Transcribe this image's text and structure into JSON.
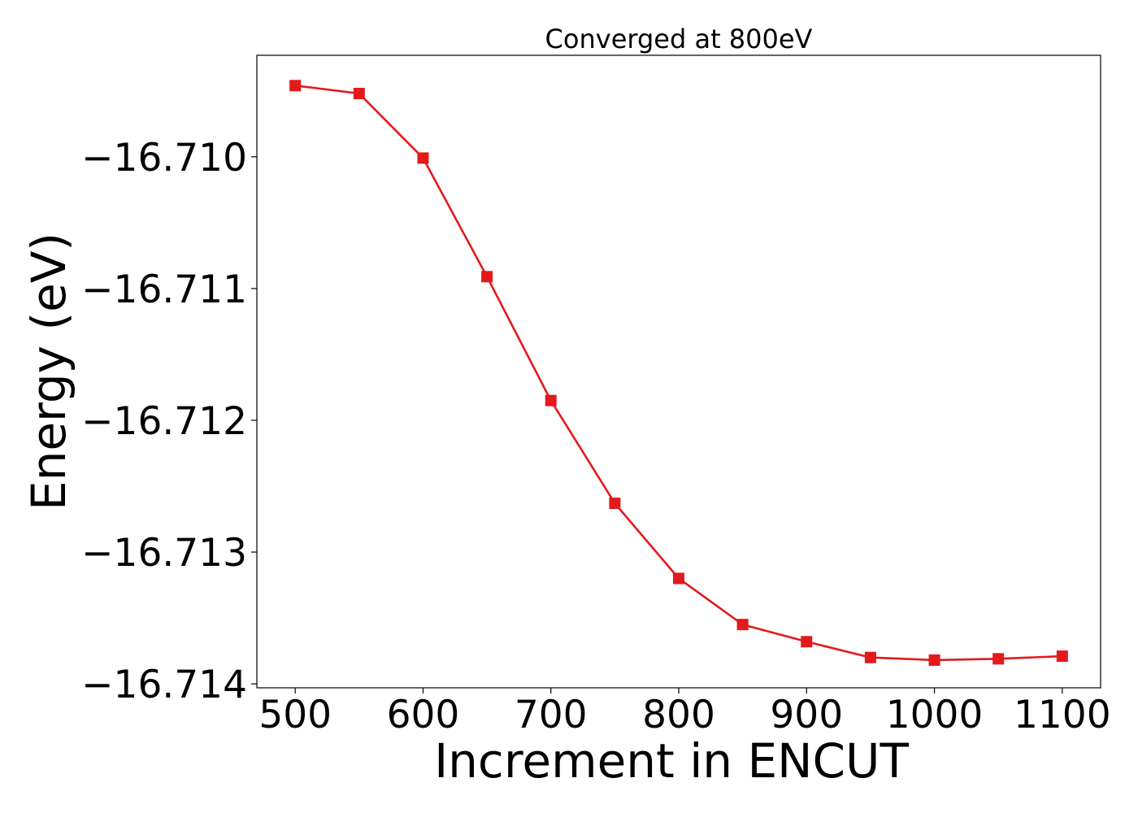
{
  "chart_data": {
    "type": "line",
    "title": "Converged at 800eV",
    "xlabel": "Increment in ENCUT",
    "ylabel": "Energy (eV)",
    "x": [
      500,
      550,
      600,
      650,
      700,
      750,
      800,
      850,
      900,
      950,
      1000,
      1050,
      1100
    ],
    "series": [
      {
        "values": [
          -16.70946,
          -16.70952,
          -16.71001,
          -16.71091,
          -16.71185,
          -16.71263,
          -16.7132,
          -16.71355,
          -16.71368,
          -16.7138,
          -16.71382,
          -16.71381,
          -16.71379
        ],
        "color": "#e31a1c",
        "marker": "square"
      }
    ],
    "xticks": [
      "500",
      "600",
      "700",
      "800",
      "900",
      "1000",
      "1100"
    ],
    "xtick_values": [
      500,
      600,
      700,
      800,
      900,
      1000,
      1100
    ],
    "yticks": [
      "−16.710",
      "−16.711",
      "−16.712",
      "−16.713",
      "−16.714"
    ],
    "ytick_values": [
      -16.71,
      -16.711,
      -16.712,
      -16.713,
      -16.714
    ],
    "xlim": [
      470,
      1130
    ],
    "ylim": [
      -16.71403,
      -16.70923
    ],
    "grid": false,
    "legend": "none"
  }
}
